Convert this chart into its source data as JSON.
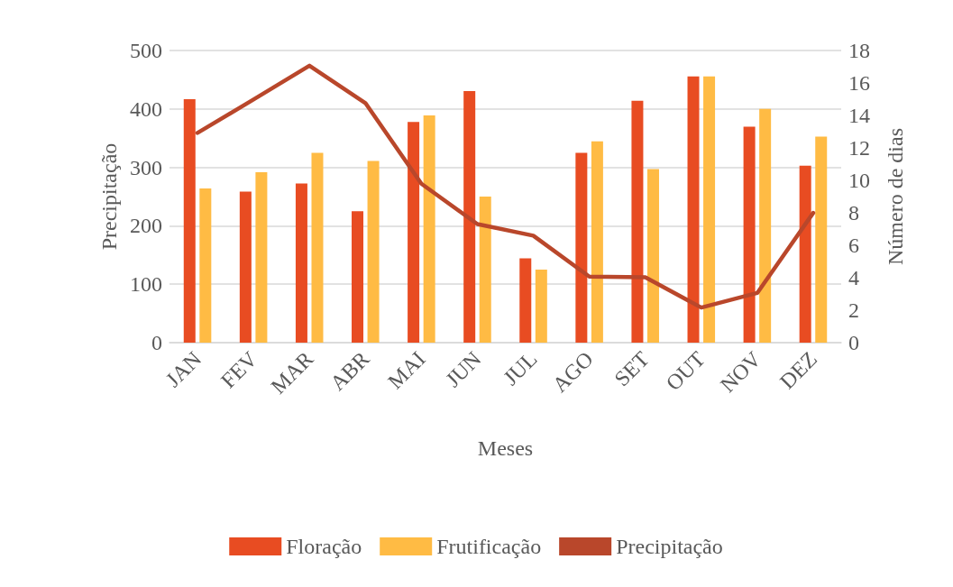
{
  "chart_data": {
    "type": "bar",
    "xlabel": "Meses",
    "ylabel": "Precipitação",
    "y2label": "Número de dias",
    "categories": [
      "JAN",
      "FEV",
      "MAR",
      "ABR",
      "MAI",
      "JUN",
      "JUL",
      "AGO",
      "SET",
      "OUT",
      "NOV",
      "DEZ"
    ],
    "series": [
      {
        "name": "Floração",
        "axis": "y2",
        "color": "#e84c22",
        "values": [
          15,
          9.3,
          9.8,
          8.1,
          13.6,
          15.5,
          5.2,
          11.7,
          14.9,
          16.4,
          13.3,
          10.9
        ]
      },
      {
        "name": "Frutificação",
        "axis": "y2",
        "color": "#ffbb44",
        "values": [
          9.5,
          10.5,
          11.7,
          11.2,
          14,
          9,
          4.5,
          12.4,
          10.7,
          16.4,
          14.4,
          12.7
        ]
      },
      {
        "name": "Precipitação",
        "type": "line",
        "axis": "y",
        "color": "#b9472b",
        "values": [
          359,
          416,
          474,
          410,
          272,
          203,
          183,
          113,
          112,
          60,
          85,
          222
        ]
      }
    ],
    "ylim": [
      0,
      500
    ],
    "yticks": [
      0,
      100,
      200,
      300,
      400,
      500
    ],
    "y2lim": [
      0,
      18
    ],
    "y2ticks": [
      0,
      2,
      4,
      6,
      8,
      10,
      12,
      14,
      16,
      18
    ],
    "grid": "y",
    "legend": "bottom",
    "marker": "none",
    "line_style": "solid"
  }
}
